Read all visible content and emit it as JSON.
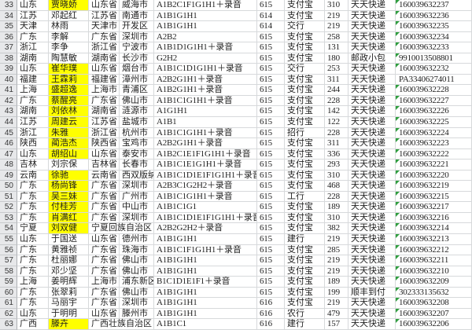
{
  "colors": {
    "name_highlight": "#ffff00",
    "text_error_flag": "#2f9e3f",
    "gridline": "#d7d9db",
    "row_header_bg": "#e7e8ea"
  },
  "sheet": {
    "first_row_number": 33,
    "last_row_number": 63,
    "rows": [
      {
        "n": "33",
        "region": "山东",
        "name": "贾晓娇",
        "hl": true,
        "prov": "山东省",
        "city": "威海市",
        "code": "A1B2C1F1G1H1＋录音",
        "batch": "615",
        "pay": "支付宝",
        "amt": "310",
        "courier": "天天快递",
        "track": "160039632237",
        "flag": true
      },
      {
        "n": "34",
        "region": "江苏",
        "name": "邓起红",
        "hl": false,
        "prov": "江苏省",
        "city": "南通市",
        "code": "A1B1G1H1",
        "batch": "614",
        "pay": "支付宝",
        "amt": "219",
        "courier": "天天快递",
        "track": "160039632236",
        "flag": true
      },
      {
        "n": "35",
        "region": "天津",
        "name": "林雨",
        "hl": false,
        "prov": "天津市",
        "city": "开发区",
        "code": "A1B1G1H1",
        "batch": "614",
        "pay": "交行",
        "amt": "219",
        "courier": "天天快递",
        "track": "160039632235",
        "flag": true
      },
      {
        "n": "36",
        "region": "广东",
        "name": "李解",
        "hl": false,
        "prov": "广东省",
        "city": "深圳市",
        "code": "A2B2",
        "batch": "615",
        "pay": "支付宝",
        "amt": "258",
        "courier": "天天快递",
        "track": "160039632234",
        "flag": true
      },
      {
        "n": "37",
        "region": "浙江",
        "name": "李争",
        "hl": false,
        "prov": "浙江省",
        "city": "宁波市",
        "code": "A1B1D1G1H1＋录音",
        "batch": "615",
        "pay": "支付宝",
        "amt": "131",
        "courier": "天天快递",
        "track": "160039632233",
        "flag": true
      },
      {
        "n": "38",
        "region": "湖南",
        "name": "陶慧敏",
        "hl": false,
        "prov": "湖南省",
        "city": "长沙市",
        "code": "G2H2",
        "batch": "615",
        "pay": "支付宝",
        "amt": "180",
        "courier": "邮政小包",
        "track": "9910013508801",
        "flag": true
      },
      {
        "n": "39",
        "region": "山东",
        "name": "崔华璞",
        "hl": true,
        "prov": "山东省",
        "city": "烟台市",
        "code": "A1B1C1D1G1H1＋录音",
        "batch": "615",
        "pay": "交行",
        "amt": "253",
        "courier": "天天快递",
        "track": "160039632232",
        "flag": true
      },
      {
        "n": "40",
        "region": "福建",
        "name": "王霖莉",
        "hl": true,
        "prov": "福建省",
        "city": "漳州市",
        "code": "A2B2G1H1＋录音",
        "batch": "615",
        "pay": "支付宝",
        "amt": "311",
        "courier": "天天快递",
        "track": "PA33406274011",
        "flag": false
      },
      {
        "n": "41",
        "region": "上海",
        "name": "盛超逸",
        "hl": true,
        "prov": "上海市",
        "city": "青浦区",
        "code": "A1B2G1H1＋录音",
        "batch": "615",
        "pay": "支付宝",
        "amt": "244",
        "courier": "天天快递",
        "track": "160039632228",
        "flag": true
      },
      {
        "n": "42",
        "region": "广东",
        "name": "蔡醒亮",
        "hl": true,
        "prov": "广东省",
        "city": "佛山市",
        "code": "A1B1C1G1H1＋录音",
        "batch": "615",
        "pay": "支付宝",
        "amt": "228",
        "courier": "天天快递",
        "track": "160039632227",
        "flag": true
      },
      {
        "n": "43",
        "region": "湖南",
        "name": "刘依林",
        "hl": true,
        "prov": "湖南省",
        "city": "涟源市",
        "code": "A1G1H1",
        "batch": "615",
        "pay": "支付宝",
        "amt": "142",
        "courier": "天天快递",
        "track": "160039632226",
        "flag": true
      },
      {
        "n": "44",
        "region": "江苏",
        "name": "周建云",
        "hl": true,
        "prov": "江苏省",
        "city": "盐城市",
        "code": "A1B1",
        "batch": "615",
        "pay": "支付宝",
        "amt": "122",
        "courier": "天天快递",
        "track": "160039632225",
        "flag": true
      },
      {
        "n": "45",
        "region": "浙江",
        "name": "朱雅",
        "hl": true,
        "prov": "浙江省",
        "city": "杭州市",
        "code": "A1B1C1G1H1＋录音",
        "batch": "615",
        "pay": "招行",
        "amt": "228",
        "courier": "天天快递",
        "track": "160039632224",
        "flag": true
      },
      {
        "n": "46",
        "region": "陕西",
        "name": "蔺浩杰",
        "hl": true,
        "prov": "陕西省",
        "city": "宝鸡市",
        "code": "A2B2G1H1＋录音",
        "batch": "615",
        "pay": "支付宝",
        "amt": "311",
        "courier": "天天快递",
        "track": "160039632223",
        "flag": true
      },
      {
        "n": "47",
        "region": "山东",
        "name": "胡绍山",
        "hl": true,
        "prov": "山东省",
        "city": "泰安市",
        "code": "A1B2C1E1F1G1H1＋录音",
        "batch": "615",
        "pay": "支付宝",
        "amt": "336",
        "courier": "天天快递",
        "track": "160039632222",
        "flag": true
      },
      {
        "n": "48",
        "region": "吉林",
        "name": "刘宗保",
        "hl": false,
        "prov": "吉林省",
        "city": "长春市",
        "code": "A1B1C1E1G1H1＋录音",
        "batch": "615",
        "pay": "支付宝",
        "amt": "293",
        "courier": "天天快递",
        "track": "160039632221",
        "flag": true
      },
      {
        "n": "49",
        "region": "云南",
        "name": "徐驰",
        "hl": true,
        "prov": "云南省",
        "city": "西双版纳",
        "code": "A1B1C1D1E1F1G1H1＋录音",
        "batch": "615",
        "pay": "支付宝",
        "amt": "310",
        "courier": "天天快递",
        "track": "160039632220",
        "flag": true
      },
      {
        "n": "50",
        "region": "广东",
        "name": "杨尚锋",
        "hl": true,
        "prov": "广东省",
        "city": "深圳市",
        "code": "A2B3C1G2H2＋录音",
        "batch": "615",
        "pay": "支付宝",
        "amt": "468",
        "courier": "天天快递",
        "track": "160039632219",
        "flag": true
      },
      {
        "n": "51",
        "region": "广东",
        "name": "吴三妹",
        "hl": true,
        "prov": "广东省",
        "city": "广州市",
        "code": "A1B1C1G1H1＋录音",
        "batch": "615",
        "pay": "工行",
        "amt": "228",
        "courier": "天天快递",
        "track": "160039632215",
        "flag": true
      },
      {
        "n": "52",
        "region": "广东",
        "name": "付桂芳",
        "hl": true,
        "prov": "广东省",
        "city": "中山市",
        "code": "A1B1C1G1",
        "batch": "615",
        "pay": "支付宝",
        "amt": "189",
        "courier": "天天快递",
        "track": "160039632217",
        "flag": true
      },
      {
        "n": "53",
        "region": "广东",
        "name": "肖满红",
        "hl": true,
        "prov": "广东省",
        "city": "深圳市",
        "code": "A1B1C1D1E1F1G1H1＋录音",
        "batch": "615",
        "pay": "支付宝",
        "amt": "310",
        "courier": "天天快递",
        "track": "160039632216",
        "flag": true
      },
      {
        "n": "54",
        "region": "宁夏",
        "name": "刘双健",
        "hl": true,
        "prov": "宁夏回族自治区",
        "city": "",
        "code": "A2B2G2H2＋录音",
        "batch": "615",
        "pay": "支付宝",
        "amt": "382",
        "courier": "天天快递",
        "track": "160039632214",
        "flag": true
      },
      {
        "n": "55",
        "region": "山东",
        "name": "于国送",
        "hl": false,
        "prov": "山东省",
        "city": "德州市",
        "code": "A1B1G1H1",
        "batch": "615",
        "pay": "建行",
        "amt": "219",
        "courier": "天天快递",
        "track": "160039632213",
        "flag": true
      },
      {
        "n": "56",
        "region": "广东",
        "name": "黄雅祯",
        "hl": false,
        "prov": "广东省",
        "city": "珠海市",
        "code": "A1B1C1F1G1H1＋录音",
        "batch": "615",
        "pay": "支付宝",
        "amt": "285",
        "courier": "天天快递",
        "track": "160039632212",
        "flag": true
      },
      {
        "n": "57",
        "region": "广东",
        "name": "杜丽娜",
        "hl": false,
        "prov": "广东省",
        "city": "佛山市",
        "code": "A1B1G1H1",
        "batch": "615",
        "pay": "支付宝",
        "amt": "219",
        "courier": "天天快递",
        "track": "160039632211",
        "flag": true
      },
      {
        "n": "58",
        "region": "广东",
        "name": "邓少坚",
        "hl": false,
        "prov": "广东省",
        "city": "佛山市",
        "code": "A1B1G1H1",
        "batch": "615",
        "pay": "支付宝",
        "amt": "219",
        "courier": "天天快递",
        "track": "160039632210",
        "flag": true
      },
      {
        "n": "59",
        "region": "上海",
        "name": "姜明辉",
        "hl": false,
        "prov": "上海市",
        "city": "浦东新区",
        "code": "B1C1D1E1F1＋录音",
        "batch": "615",
        "pay": "支付宝",
        "amt": "189",
        "courier": "天天快递",
        "track": "160039632209",
        "flag": true
      },
      {
        "n": "60",
        "region": "广东",
        "name": "张翠莉",
        "hl": false,
        "prov": "广东省",
        "city": "佛山市",
        "code": "A1B1G1H1",
        "batch": "615",
        "pay": "支付宝",
        "amt": "199",
        "courier": "顺丰到付",
        "track": "302333135632",
        "flag": true
      },
      {
        "n": "61",
        "region": "广东",
        "name": "马丽宇",
        "hl": false,
        "prov": "广东省",
        "city": "深圳市",
        "code": "A1B1G1H1",
        "batch": "616",
        "pay": "支付宝",
        "amt": "219",
        "courier": "天天快递",
        "track": "160039632208",
        "flag": true
      },
      {
        "n": "62",
        "region": "山东",
        "name": "于明明",
        "hl": false,
        "prov": "山东省",
        "city": "滕州市",
        "code": "A1B1G1H1",
        "batch": "616",
        "pay": "农行",
        "amt": "479",
        "courier": "天天快递",
        "track": "160039632207",
        "flag": true
      },
      {
        "n": "63",
        "region": "广西",
        "name": "滕卉",
        "hl": true,
        "prov": "广西壮族自治区",
        "city": "",
        "code": "A1B1C1",
        "batch": "616",
        "pay": "建行",
        "amt": "157",
        "courier": "天天快递",
        "track": "160039632206",
        "flag": true
      }
    ]
  }
}
